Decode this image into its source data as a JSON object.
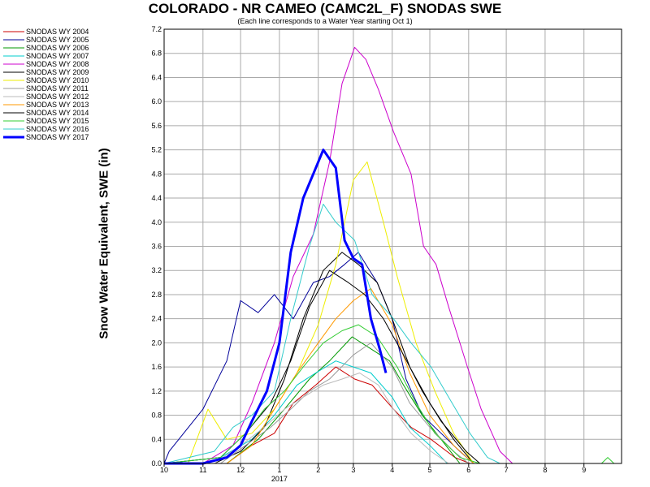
{
  "chart_data": {
    "type": "line",
    "title": "COLORADO - NR CAMEO (CAMC2L_F) SNODAS SWE",
    "subtitle": "(Each line corresponds to a Water Year starting Oct 1)",
    "ylabel": "Snow Water Equivalent, SWE (in)",
    "xlabel": "",
    "ylim": [
      0,
      7.2
    ],
    "yticks": [
      "0.0",
      "0.4",
      "0.8",
      "1.2",
      "1.6",
      "2.0",
      "2.4",
      "2.8",
      "3.2",
      "3.6",
      "4.0",
      "4.4",
      "4.8",
      "5.2",
      "5.6",
      "6.0",
      "6.4",
      "6.8",
      "7.2"
    ],
    "x_month_ticks": [
      {
        "label": "10",
        "month": 10
      },
      {
        "label": "11",
        "month": 11
      },
      {
        "label": "12",
        "month": 12
      },
      {
        "label": "1",
        "month": 1
      },
      {
        "label": "2",
        "month": 2
      },
      {
        "label": "3",
        "month": 3
      },
      {
        "label": "4",
        "month": 4
      },
      {
        "label": "5",
        "month": 5
      },
      {
        "label": "6",
        "month": 6
      },
      {
        "label": "7",
        "month": 7
      },
      {
        "label": "8",
        "month": 8
      },
      {
        "label": "9",
        "month": 9
      }
    ],
    "x_year_label": "2017",
    "grid": true,
    "legend_placement": "left",
    "x_axis": "date (month/day within water year)",
    "series": [
      {
        "name": "SNODAS WY 2004",
        "color": "#cc0000",
        "values": [
          [
            "2003-10-01",
            0
          ],
          [
            "2003-11-20",
            0
          ],
          [
            "2003-12-10",
            0.3
          ],
          [
            "2003-12-28",
            0.5
          ],
          [
            "2004-01-12",
            1.0
          ],
          [
            "2004-01-30",
            1.3
          ],
          [
            "2004-02-15",
            1.6
          ],
          [
            "2004-03-01",
            1.4
          ],
          [
            "2004-03-15",
            1.3
          ],
          [
            "2004-04-01",
            0.9
          ],
          [
            "2004-04-15",
            0.6
          ],
          [
            "2004-05-01",
            0.4
          ],
          [
            "2004-05-20",
            0.1
          ],
          [
            "2004-06-01",
            0
          ]
        ]
      },
      {
        "name": "SNODAS WY 2005",
        "color": "#000099",
        "values": [
          [
            "2004-10-01",
            0
          ],
          [
            "2004-10-05",
            0.2
          ],
          [
            "2004-11-01",
            0.9
          ],
          [
            "2004-11-20",
            1.7
          ],
          [
            "2004-12-01",
            2.7
          ],
          [
            "2004-12-15",
            2.5
          ],
          [
            "2004-12-28",
            2.8
          ],
          [
            "2005-01-12",
            2.4
          ],
          [
            "2005-01-28",
            3.0
          ],
          [
            "2005-02-10",
            3.1
          ],
          [
            "2005-02-22",
            3.3
          ],
          [
            "2005-03-05",
            3.5
          ],
          [
            "2005-03-20",
            3.0
          ],
          [
            "2005-04-01",
            2.4
          ],
          [
            "2005-04-12",
            1.4
          ],
          [
            "2005-04-25",
            0.8
          ],
          [
            "2005-05-10",
            0.5
          ],
          [
            "2005-05-25",
            0.2
          ],
          [
            "2005-06-05",
            0
          ]
        ]
      },
      {
        "name": "SNODAS WY 2006",
        "color": "#009900",
        "values": [
          [
            "2005-10-01",
            0
          ],
          [
            "2005-11-20",
            0
          ],
          [
            "2005-12-15",
            0.4
          ],
          [
            "2006-01-05",
            0.9
          ],
          [
            "2006-01-25",
            1.4
          ],
          [
            "2006-02-10",
            1.7
          ],
          [
            "2006-02-28",
            2.1
          ],
          [
            "2006-03-15",
            1.9
          ],
          [
            "2006-03-30",
            1.7
          ],
          [
            "2006-04-10",
            1.3
          ],
          [
            "2006-04-25",
            0.8
          ],
          [
            "2006-05-10",
            0.4
          ],
          [
            "2006-05-25",
            0
          ]
        ]
      },
      {
        "name": "SNODAS WY 2007",
        "color": "#00cccc",
        "values": [
          [
            "2006-10-01",
            0
          ],
          [
            "2006-11-15",
            0.1
          ],
          [
            "2006-12-10",
            0.4
          ],
          [
            "2006-12-28",
            0.8
          ],
          [
            "2007-01-15",
            1.3
          ],
          [
            "2007-01-30",
            1.5
          ],
          [
            "2007-02-15",
            1.7
          ],
          [
            "2007-03-01",
            1.6
          ],
          [
            "2007-03-15",
            1.5
          ],
          [
            "2007-04-01",
            1.1
          ],
          [
            "2007-04-15",
            0.6
          ],
          [
            "2007-05-01",
            0.3
          ],
          [
            "2007-05-15",
            0
          ]
        ]
      },
      {
        "name": "SNODAS WY 2008",
        "color": "#cc00cc",
        "values": [
          [
            "2007-10-01",
            0
          ],
          [
            "2007-11-01",
            0
          ],
          [
            "2007-11-25",
            0.3
          ],
          [
            "2007-12-10",
            1.0
          ],
          [
            "2007-12-28",
            2.0
          ],
          [
            "2008-01-12",
            3.1
          ],
          [
            "2008-01-28",
            3.8
          ],
          [
            "2008-02-10",
            5.0
          ],
          [
            "2008-02-20",
            6.3
          ],
          [
            "2008-03-01",
            6.9
          ],
          [
            "2008-03-10",
            6.7
          ],
          [
            "2008-03-20",
            6.2
          ],
          [
            "2008-04-01",
            5.5
          ],
          [
            "2008-04-15",
            4.8
          ],
          [
            "2008-04-25",
            3.6
          ],
          [
            "2008-05-05",
            3.3
          ],
          [
            "2008-05-15",
            2.6
          ],
          [
            "2008-05-30",
            1.6
          ],
          [
            "2008-06-10",
            0.9
          ],
          [
            "2008-06-25",
            0.2
          ],
          [
            "2008-07-05",
            0
          ]
        ]
      },
      {
        "name": "SNODAS WY 2009",
        "color": "#000000",
        "values": [
          [
            "2008-10-01",
            0
          ],
          [
            "2008-11-10",
            0
          ],
          [
            "2008-12-01",
            0.2
          ],
          [
            "2008-12-20",
            0.6
          ],
          [
            "2009-01-05",
            1.4
          ],
          [
            "2009-01-20",
            2.4
          ],
          [
            "2009-02-05",
            3.2
          ],
          [
            "2009-02-20",
            3.5
          ],
          [
            "2009-03-05",
            3.3
          ],
          [
            "2009-03-20",
            3.0
          ],
          [
            "2009-04-01",
            2.4
          ],
          [
            "2009-04-15",
            1.6
          ],
          [
            "2009-05-01",
            1.0
          ],
          [
            "2009-05-20",
            0.4
          ],
          [
            "2009-06-05",
            0
          ]
        ]
      },
      {
        "name": "SNODAS WY 2010",
        "color": "#eeee00",
        "values": [
          [
            "2009-10-01",
            0
          ],
          [
            "2009-10-20",
            0
          ],
          [
            "2009-11-05",
            0.9
          ],
          [
            "2009-11-20",
            0.4
          ],
          [
            "2009-12-10",
            0.5
          ],
          [
            "2009-12-28",
            0.9
          ],
          [
            "2010-01-15",
            1.5
          ],
          [
            "2010-02-01",
            2.3
          ],
          [
            "2010-02-15",
            3.3
          ],
          [
            "2010-03-01",
            4.7
          ],
          [
            "2010-03-12",
            5.0
          ],
          [
            "2010-03-25",
            4.0
          ],
          [
            "2010-04-05",
            3.1
          ],
          [
            "2010-04-20",
            2.0
          ],
          [
            "2010-05-05",
            1.2
          ],
          [
            "2010-05-20",
            0.5
          ],
          [
            "2010-06-05",
            0
          ]
        ]
      },
      {
        "name": "SNODAS WY 2011",
        "color": "#999999",
        "values": [
          [
            "2010-10-01",
            0
          ],
          [
            "2010-11-15",
            0
          ],
          [
            "2010-12-05",
            0.3
          ],
          [
            "2010-12-25",
            0.6
          ],
          [
            "2011-01-10",
            0.9
          ],
          [
            "2011-01-25",
            1.2
          ],
          [
            "2011-02-10",
            1.4
          ],
          [
            "2011-03-01",
            1.8
          ],
          [
            "2011-03-15",
            2.0
          ],
          [
            "2011-04-01",
            1.6
          ],
          [
            "2011-04-15",
            1.0
          ],
          [
            "2011-05-01",
            0.6
          ],
          [
            "2011-05-20",
            0.2
          ],
          [
            "2011-06-01",
            0
          ]
        ]
      },
      {
        "name": "SNODAS WY 2012",
        "color": "#bbbbbb",
        "values": [
          [
            "2011-10-01",
            0
          ],
          [
            "2011-11-10",
            0
          ],
          [
            "2011-12-01",
            0.3
          ],
          [
            "2011-12-20",
            0.6
          ],
          [
            "2012-01-05",
            0.9
          ],
          [
            "2012-01-20",
            1.1
          ],
          [
            "2012-02-05",
            1.3
          ],
          [
            "2012-02-20",
            1.4
          ],
          [
            "2012-03-05",
            1.5
          ],
          [
            "2012-03-20",
            1.3
          ],
          [
            "2012-04-01",
            0.9
          ],
          [
            "2012-04-15",
            0.5
          ],
          [
            "2012-05-01",
            0.2
          ],
          [
            "2012-05-15",
            0
          ]
        ]
      },
      {
        "name": "SNODAS WY 2013",
        "color": "#ff9900",
        "values": [
          [
            "2012-10-01",
            0
          ],
          [
            "2012-11-20",
            0
          ],
          [
            "2012-12-10",
            0.3
          ],
          [
            "2012-12-28",
            0.9
          ],
          [
            "2013-01-15",
            1.5
          ],
          [
            "2013-02-01",
            2.0
          ],
          [
            "2013-02-15",
            2.4
          ],
          [
            "2013-03-01",
            2.7
          ],
          [
            "2013-03-15",
            2.9
          ],
          [
            "2013-04-01",
            2.3
          ],
          [
            "2013-04-15",
            1.5
          ],
          [
            "2013-05-01",
            0.8
          ],
          [
            "2013-05-20",
            0.3
          ],
          [
            "2013-06-05",
            0
          ]
        ]
      },
      {
        "name": "SNODAS WY 2014",
        "color": "#000000",
        "values": [
          [
            "2013-10-01",
            0
          ],
          [
            "2013-11-15",
            0.1
          ],
          [
            "2013-12-05",
            0.5
          ],
          [
            "2013-12-25",
            1.0
          ],
          [
            "2014-01-10",
            1.7
          ],
          [
            "2014-01-25",
            2.6
          ],
          [
            "2014-02-10",
            3.2
          ],
          [
            "2014-02-25",
            3.0
          ],
          [
            "2014-03-10",
            2.8
          ],
          [
            "2014-03-25",
            2.4
          ],
          [
            "2014-04-10",
            1.8
          ],
          [
            "2014-04-25",
            1.2
          ],
          [
            "2014-05-10",
            0.7
          ],
          [
            "2014-05-30",
            0.2
          ],
          [
            "2014-06-10",
            0
          ]
        ]
      },
      {
        "name": "SNODAS WY 2015",
        "color": "#33cc33",
        "values": [
          [
            "2014-10-01",
            0
          ],
          [
            "2014-11-15",
            0.1
          ],
          [
            "2014-12-05",
            0.5
          ],
          [
            "2014-12-20",
            0.9
          ],
          [
            "2015-01-05",
            1.2
          ],
          [
            "2015-01-20",
            1.6
          ],
          [
            "2015-02-05",
            2.0
          ],
          [
            "2015-02-20",
            2.2
          ],
          [
            "2015-03-05",
            2.3
          ],
          [
            "2015-03-20",
            2.1
          ],
          [
            "2015-04-05",
            1.6
          ],
          [
            "2015-04-20",
            1.0
          ],
          [
            "2015-05-05",
            0.5
          ],
          [
            "2015-05-25",
            0.1
          ],
          [
            "2015-06-10",
            0
          ],
          [
            "2015-09-15",
            0
          ],
          [
            "2015-09-20",
            0.1
          ],
          [
            "2015-09-25",
            0
          ]
        ]
      },
      {
        "name": "SNODAS WY 2016",
        "color": "#33cccc",
        "values": [
          [
            "2015-10-01",
            0
          ],
          [
            "2015-11-10",
            0.2
          ],
          [
            "2015-11-25",
            0.6
          ],
          [
            "2015-12-10",
            0.8
          ],
          [
            "2015-12-28",
            1.2
          ],
          [
            "2016-01-10",
            2.4
          ],
          [
            "2016-01-25",
            3.6
          ],
          [
            "2016-02-05",
            4.3
          ],
          [
            "2016-02-15",
            4.0
          ],
          [
            "2016-03-01",
            3.7
          ],
          [
            "2016-03-15",
            2.8
          ],
          [
            "2016-04-01",
            2.4
          ],
          [
            "2016-04-15",
            2.0
          ],
          [
            "2016-05-01",
            1.6
          ],
          [
            "2016-05-15",
            1.1
          ],
          [
            "2016-06-01",
            0.5
          ],
          [
            "2016-06-15",
            0.1
          ],
          [
            "2016-06-25",
            0
          ]
        ]
      },
      {
        "name": "SNODAS WY 2017",
        "color": "#0000ff",
        "bold": true,
        "values": [
          [
            "2016-10-01",
            0
          ],
          [
            "2016-11-01",
            0
          ],
          [
            "2016-11-20",
            0.1
          ],
          [
            "2016-12-01",
            0.3
          ],
          [
            "2016-12-10",
            0.7
          ],
          [
            "2016-12-22",
            1.2
          ],
          [
            "2017-01-01",
            2.0
          ],
          [
            "2017-01-10",
            3.5
          ],
          [
            "2017-01-20",
            4.4
          ],
          [
            "2017-01-28",
            4.8
          ],
          [
            "2017-02-05",
            5.2
          ],
          [
            "2017-02-15",
            4.9
          ],
          [
            "2017-02-22",
            3.7
          ],
          [
            "2017-03-01",
            3.4
          ],
          [
            "2017-03-08",
            3.3
          ],
          [
            "2017-03-15",
            2.4
          ],
          [
            "2017-03-22",
            1.9
          ],
          [
            "2017-03-27",
            1.5
          ]
        ]
      }
    ]
  }
}
